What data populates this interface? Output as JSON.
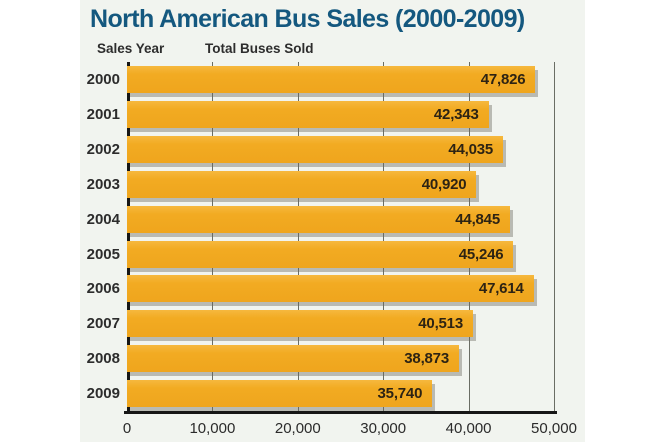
{
  "chart": {
    "title": "North American Bus Sales (2000-2009)",
    "y_col_header": "Sales Year",
    "x_col_header": "Total Buses Sold"
  },
  "chart_data": {
    "type": "bar",
    "orientation": "horizontal",
    "title": "North American Bus Sales (2000-2009)",
    "ylabel": "Sales Year",
    "xlabel": "Total Buses Sold",
    "categories": [
      "2000",
      "2001",
      "2002",
      "2003",
      "2004",
      "2005",
      "2006",
      "2007",
      "2008",
      "2009"
    ],
    "values": [
      47826,
      42343,
      44035,
      40920,
      44845,
      45246,
      47614,
      40513,
      38873,
      35740
    ],
    "value_labels": [
      "47,826",
      "42,343",
      "44,035",
      "40,920",
      "44,845",
      "45,246",
      "47,614",
      "40,513",
      "38,873",
      "35,740"
    ],
    "xlim": [
      0,
      50000
    ],
    "x_ticks": [
      {
        "value": 0,
        "label": "0"
      },
      {
        "value": 10000,
        "label": "10,000"
      },
      {
        "value": 20000,
        "label": "20,000"
      },
      {
        "value": 30000,
        "label": "30,000"
      },
      {
        "value": 40000,
        "label": "40,000"
      },
      {
        "value": 50000,
        "label": "50,000"
      }
    ],
    "grid": true,
    "legend": "none",
    "colors": {
      "bar": "#F2AB22",
      "title": "#14587F",
      "panel_background": "#F1F4EF",
      "axis": "#161616",
      "gridline": "#6a6d64",
      "value_text": "#2d2313"
    }
  }
}
